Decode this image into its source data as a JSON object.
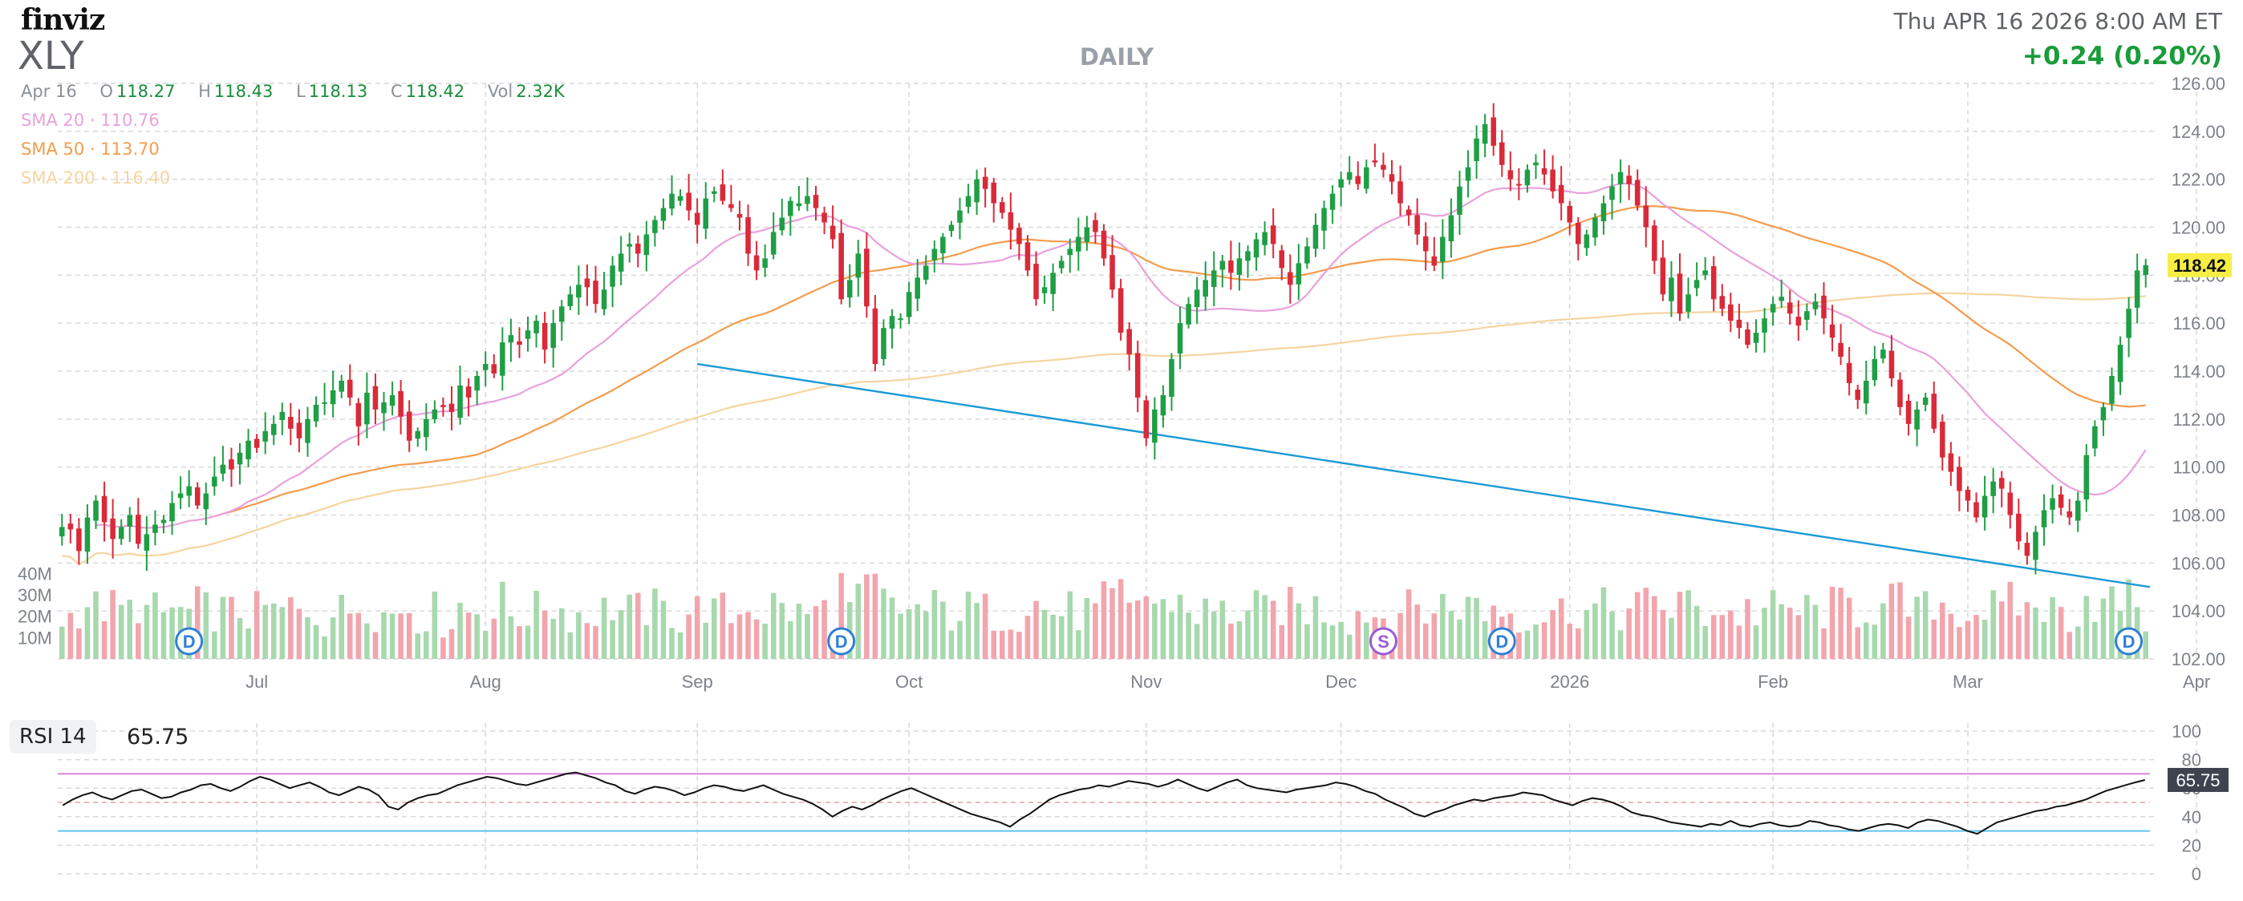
{
  "header": {
    "logo": "finviz",
    "ticker": "XLY",
    "timeframe": "DAILY",
    "datetime": "Thu APR 16 2026 8:00 AM ET",
    "change": "+0.24 (0.20%)"
  },
  "ohlc": {
    "date": "Apr 16",
    "open_label": "O",
    "open": "118.27",
    "high_label": "H",
    "high": "118.43",
    "low_label": "L",
    "low": "118.13",
    "close_label": "C",
    "close": "118.42",
    "vol_label": "Vol",
    "vol": "2.32K"
  },
  "sma": [
    {
      "label": "SMA 20",
      "value": "110.76",
      "color": "#e9a1dc"
    },
    {
      "label": "SMA 50",
      "value": "113.70",
      "color": "#f39c4d"
    },
    {
      "label": "SMA 200",
      "value": "116.40",
      "color": "#f5d5a0"
    }
  ],
  "rsi": {
    "label": "RSI 14",
    "value": "65.75"
  },
  "colors": {
    "up": "#1f9e45",
    "down": "#d92a3a",
    "vol_up": "#a7d8ae",
    "vol_down": "#f2a5ad",
    "trendline": "#1b9ad6",
    "rsi_line": "#111111",
    "rsi_upper": "#d884e0",
    "rsi_lower": "#5ec4f0",
    "last_price_bg": "#f7ee45",
    "grid": "#d9d9d9"
  },
  "chart_data": {
    "type": "candlestick",
    "price_axis": {
      "min": 102,
      "max": 126,
      "ticks": [
        "102.00",
        "104.00",
        "106.00",
        "108.00",
        "110.00",
        "112.00",
        "114.00",
        "116.00",
        "118.00",
        "120.00",
        "122.00",
        "124.00",
        "126.00"
      ]
    },
    "volume_axis": {
      "ticks": [
        "10M",
        "20M",
        "30M",
        "40M"
      ],
      "max": 60
    },
    "x_labels": [
      {
        "label": "Jul",
        "index": 23
      },
      {
        "label": "Aug",
        "index": 50
      },
      {
        "label": "Sep",
        "index": 75
      },
      {
        "label": "Oct",
        "index": 100
      },
      {
        "label": "Nov",
        "index": 128
      },
      {
        "label": "Dec",
        "index": 151
      },
      {
        "label": "2026",
        "index": 178
      },
      {
        "label": "Feb",
        "index": 202
      },
      {
        "label": "Mar",
        "index": 225
      },
      {
        "label": "Apr",
        "index": 252
      }
    ],
    "last_price": "118.42",
    "rsi_axis": {
      "ticks": [
        "0",
        "20",
        "40",
        "60",
        "80",
        "100"
      ],
      "upper": 70,
      "lower": 30,
      "mid": 50,
      "last": "65.75"
    },
    "closes": [
      107.5,
      107.4,
      106.5,
      107.9,
      108.6,
      107.7,
      107.0,
      107.5,
      108.0,
      106.8,
      107.2,
      107.6,
      107.8,
      108.5,
      108.9,
      109.2,
      108.4,
      108.9,
      109.6,
      110.1,
      109.9,
      110.6,
      111.1,
      110.8,
      111.5,
      111.8,
      112.3,
      111.6,
      111.2,
      112.0,
      112.6,
      112.7,
      113.2,
      113.6,
      112.9,
      111.7,
      113.1,
      112.4,
      112.7,
      113.0,
      112.1,
      111.1,
      111.5,
      112.0,
      112.4,
      112.5,
      112.3,
      113.4,
      112.9,
      113.8,
      114.3,
      113.9,
      115.2,
      115.5,
      115.1,
      115.7,
      116.1,
      114.9,
      116.0,
      116.7,
      117.2,
      117.6,
      117.5,
      116.8,
      117.4,
      118.4,
      118.9,
      119.3,
      118.9,
      119.7,
      120.3,
      120.8,
      121.4,
      121.3,
      120.7,
      120.1,
      121.2,
      121.5,
      121.1,
      120.8,
      120.4,
      118.9,
      118.2,
      118.7,
      119.8,
      120.4,
      121.1,
      121.0,
      121.3,
      120.8,
      120.2,
      119.5,
      117.0,
      117.8,
      118.9,
      116.7,
      114.3,
      115.8,
      116.3,
      116.2,
      117.3,
      117.9,
      118.4,
      119.1,
      119.6,
      120.1,
      120.7,
      121.3,
      122.0,
      121.6,
      121.0,
      120.6,
      119.9,
      119.3,
      118.2,
      117.0,
      117.5,
      118.1,
      118.6,
      119.1,
      119.6,
      120.0,
      119.8,
      118.7,
      117.4,
      115.6,
      114.7,
      112.9,
      111.2,
      112.4,
      113.0,
      114.5,
      116.0,
      116.8,
      117.4,
      117.8,
      118.2,
      118.6,
      118.1,
      118.7,
      119.0,
      119.5,
      119.8,
      119.3,
      118.3,
      117.6,
      118.5,
      119.2,
      120.1,
      120.8,
      121.4,
      122.0,
      122.3,
      121.8,
      122.5,
      122.7,
      122.4,
      121.9,
      121.0,
      120.5,
      119.7,
      119.0,
      118.4,
      119.6,
      120.5,
      121.7,
      122.5,
      123.7,
      124.3,
      123.4,
      122.6,
      122.0,
      121.8,
      122.4,
      122.7,
      122.2,
      121.5,
      121.0,
      120.2,
      119.3,
      119.7,
      120.4,
      121.0,
      121.7,
      122.3,
      121.8,
      120.9,
      120.0,
      118.6,
      117.2,
      117.9,
      116.4,
      117.2,
      117.8,
      118.2,
      117.0,
      116.6,
      116.1,
      115.8,
      115.1,
      115.6,
      116.2,
      116.8,
      117.1,
      116.4,
      115.9,
      116.5,
      116.9,
      116.2,
      115.4,
      114.6,
      113.5,
      112.8,
      113.6,
      114.5,
      114.9,
      113.7,
      112.5,
      111.8,
      112.4,
      112.9,
      111.6,
      110.4,
      109.8,
      109.0,
      108.6,
      107.9,
      108.8,
      109.4,
      109.1,
      108.0,
      106.9,
      106.3,
      107.3,
      108.2,
      108.7,
      108.3,
      107.9,
      108.6,
      110.5,
      111.7,
      112.5,
      113.8,
      115.1,
      116.6,
      118.2,
      118.42
    ],
    "rsi": [
      48,
      52,
      55,
      57,
      54,
      52,
      55,
      58,
      59,
      56,
      53,
      54,
      57,
      59,
      62,
      63,
      60,
      58,
      61,
      65,
      68,
      66,
      63,
      60,
      62,
      64,
      61,
      57,
      55,
      58,
      61,
      59,
      55,
      47,
      45,
      50,
      53,
      55,
      56,
      59,
      62,
      64,
      66,
      68,
      67,
      65,
      63,
      62,
      64,
      66,
      68,
      70,
      71,
      69,
      67,
      64,
      62,
      58,
      56,
      59,
      61,
      60,
      58,
      55,
      57,
      60,
      62,
      61,
      59,
      58,
      60,
      62,
      59,
      56,
      54,
      52,
      49,
      45,
      40,
      44,
      47,
      45,
      48,
      52,
      55,
      58,
      60,
      57,
      54,
      51,
      48,
      45,
      42,
      40,
      38,
      36,
      33,
      38,
      42,
      47,
      52,
      55,
      57,
      59,
      60,
      62,
      61,
      63,
      65,
      64,
      63,
      61,
      63,
      66,
      63,
      60,
      58,
      61,
      64,
      66,
      62,
      60,
      59,
      58,
      57,
      59,
      60,
      61,
      62,
      64,
      63,
      61,
      58,
      56,
      52,
      49,
      46,
      42,
      40,
      43,
      45,
      48,
      50,
      52,
      51,
      53,
      54,
      55,
      57,
      56,
      55,
      52,
      50,
      48,
      51,
      53,
      52,
      50,
      47,
      43,
      41,
      40,
      38,
      36,
      35,
      34,
      33,
      35,
      34,
      37,
      34,
      33,
      35,
      36,
      34,
      33,
      34,
      37,
      36,
      34,
      33,
      31,
      30,
      32,
      34,
      35,
      34,
      32,
      36,
      38,
      37,
      35,
      33,
      30,
      28,
      32,
      36,
      38,
      40,
      42,
      44,
      45,
      47,
      48,
      50,
      52,
      55,
      58,
      60,
      62,
      64,
      65.75
    ]
  }
}
